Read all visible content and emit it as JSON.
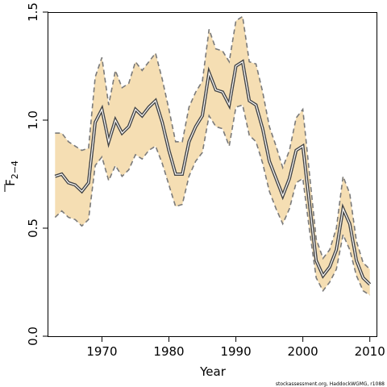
{
  "chart_data": {
    "type": "line",
    "xlabel": "Year",
    "ylabel": "F",
    "ylabel_subscript": "2−4",
    "xlim": [
      1962,
      2011
    ],
    "ylim": [
      0.0,
      1.5
    ],
    "xticks": [
      "1970",
      "1980",
      "1990",
      "2000",
      "2010"
    ],
    "yticks": [
      "0.0",
      "0.5",
      "1.0",
      "1.5"
    ],
    "grid": false,
    "colors": {
      "band": "#f5deb3",
      "band_edge": "#7a7a7a",
      "line": "#444444",
      "line_halo": "#ffffff"
    },
    "x": [
      1963,
      1964,
      1965,
      1966,
      1967,
      1968,
      1969,
      1970,
      1971,
      1972,
      1973,
      1974,
      1975,
      1976,
      1977,
      1978,
      1979,
      1980,
      1981,
      1982,
      1983,
      1984,
      1985,
      1986,
      1987,
      1988,
      1989,
      1990,
      1991,
      1992,
      1993,
      1994,
      1995,
      1996,
      1997,
      1998,
      1999,
      2000,
      2001,
      2002,
      2003,
      2004,
      2005,
      2006,
      2007,
      2008,
      2009,
      2010
    ],
    "series": [
      {
        "values": [
          0.74,
          0.75,
          0.71,
          0.7,
          0.67,
          0.71,
          0.99,
          1.05,
          0.9,
          1.0,
          0.94,
          0.97,
          1.05,
          1.02,
          1.06,
          1.09,
          0.99,
          0.86,
          0.75,
          0.75,
          0.9,
          0.97,
          1.02,
          1.22,
          1.14,
          1.13,
          1.07,
          1.25,
          1.27,
          1.09,
          1.07,
          0.96,
          0.81,
          0.73,
          0.65,
          0.73,
          0.86,
          0.88,
          0.61,
          0.35,
          0.28,
          0.32,
          0.4,
          0.59,
          0.52,
          0.35,
          0.27,
          0.24
        ]
      },
      {
        "values": [
          0.94,
          0.94,
          0.9,
          0.88,
          0.86,
          0.87,
          1.2,
          1.29,
          1.07,
          1.23,
          1.15,
          1.17,
          1.27,
          1.23,
          1.27,
          1.31,
          1.19,
          1.05,
          0.9,
          0.9,
          1.06,
          1.13,
          1.18,
          1.42,
          1.33,
          1.32,
          1.27,
          1.46,
          1.48,
          1.27,
          1.26,
          1.13,
          0.97,
          0.88,
          0.78,
          0.86,
          1.01,
          1.05,
          0.75,
          0.45,
          0.36,
          0.4,
          0.5,
          0.74,
          0.66,
          0.44,
          0.34,
          0.31
        ]
      },
      {
        "values": [
          0.55,
          0.58,
          0.55,
          0.54,
          0.51,
          0.54,
          0.79,
          0.83,
          0.72,
          0.79,
          0.74,
          0.77,
          0.84,
          0.82,
          0.86,
          0.88,
          0.8,
          0.7,
          0.6,
          0.61,
          0.74,
          0.81,
          0.85,
          1.02,
          0.97,
          0.96,
          0.88,
          1.06,
          1.07,
          0.93,
          0.9,
          0.8,
          0.67,
          0.59,
          0.52,
          0.59,
          0.71,
          0.73,
          0.49,
          0.27,
          0.21,
          0.25,
          0.31,
          0.47,
          0.4,
          0.28,
          0.21,
          0.19
        ]
      }
    ]
  },
  "footer_text": "stockassessment.org, HaddockWGMG, r1088"
}
